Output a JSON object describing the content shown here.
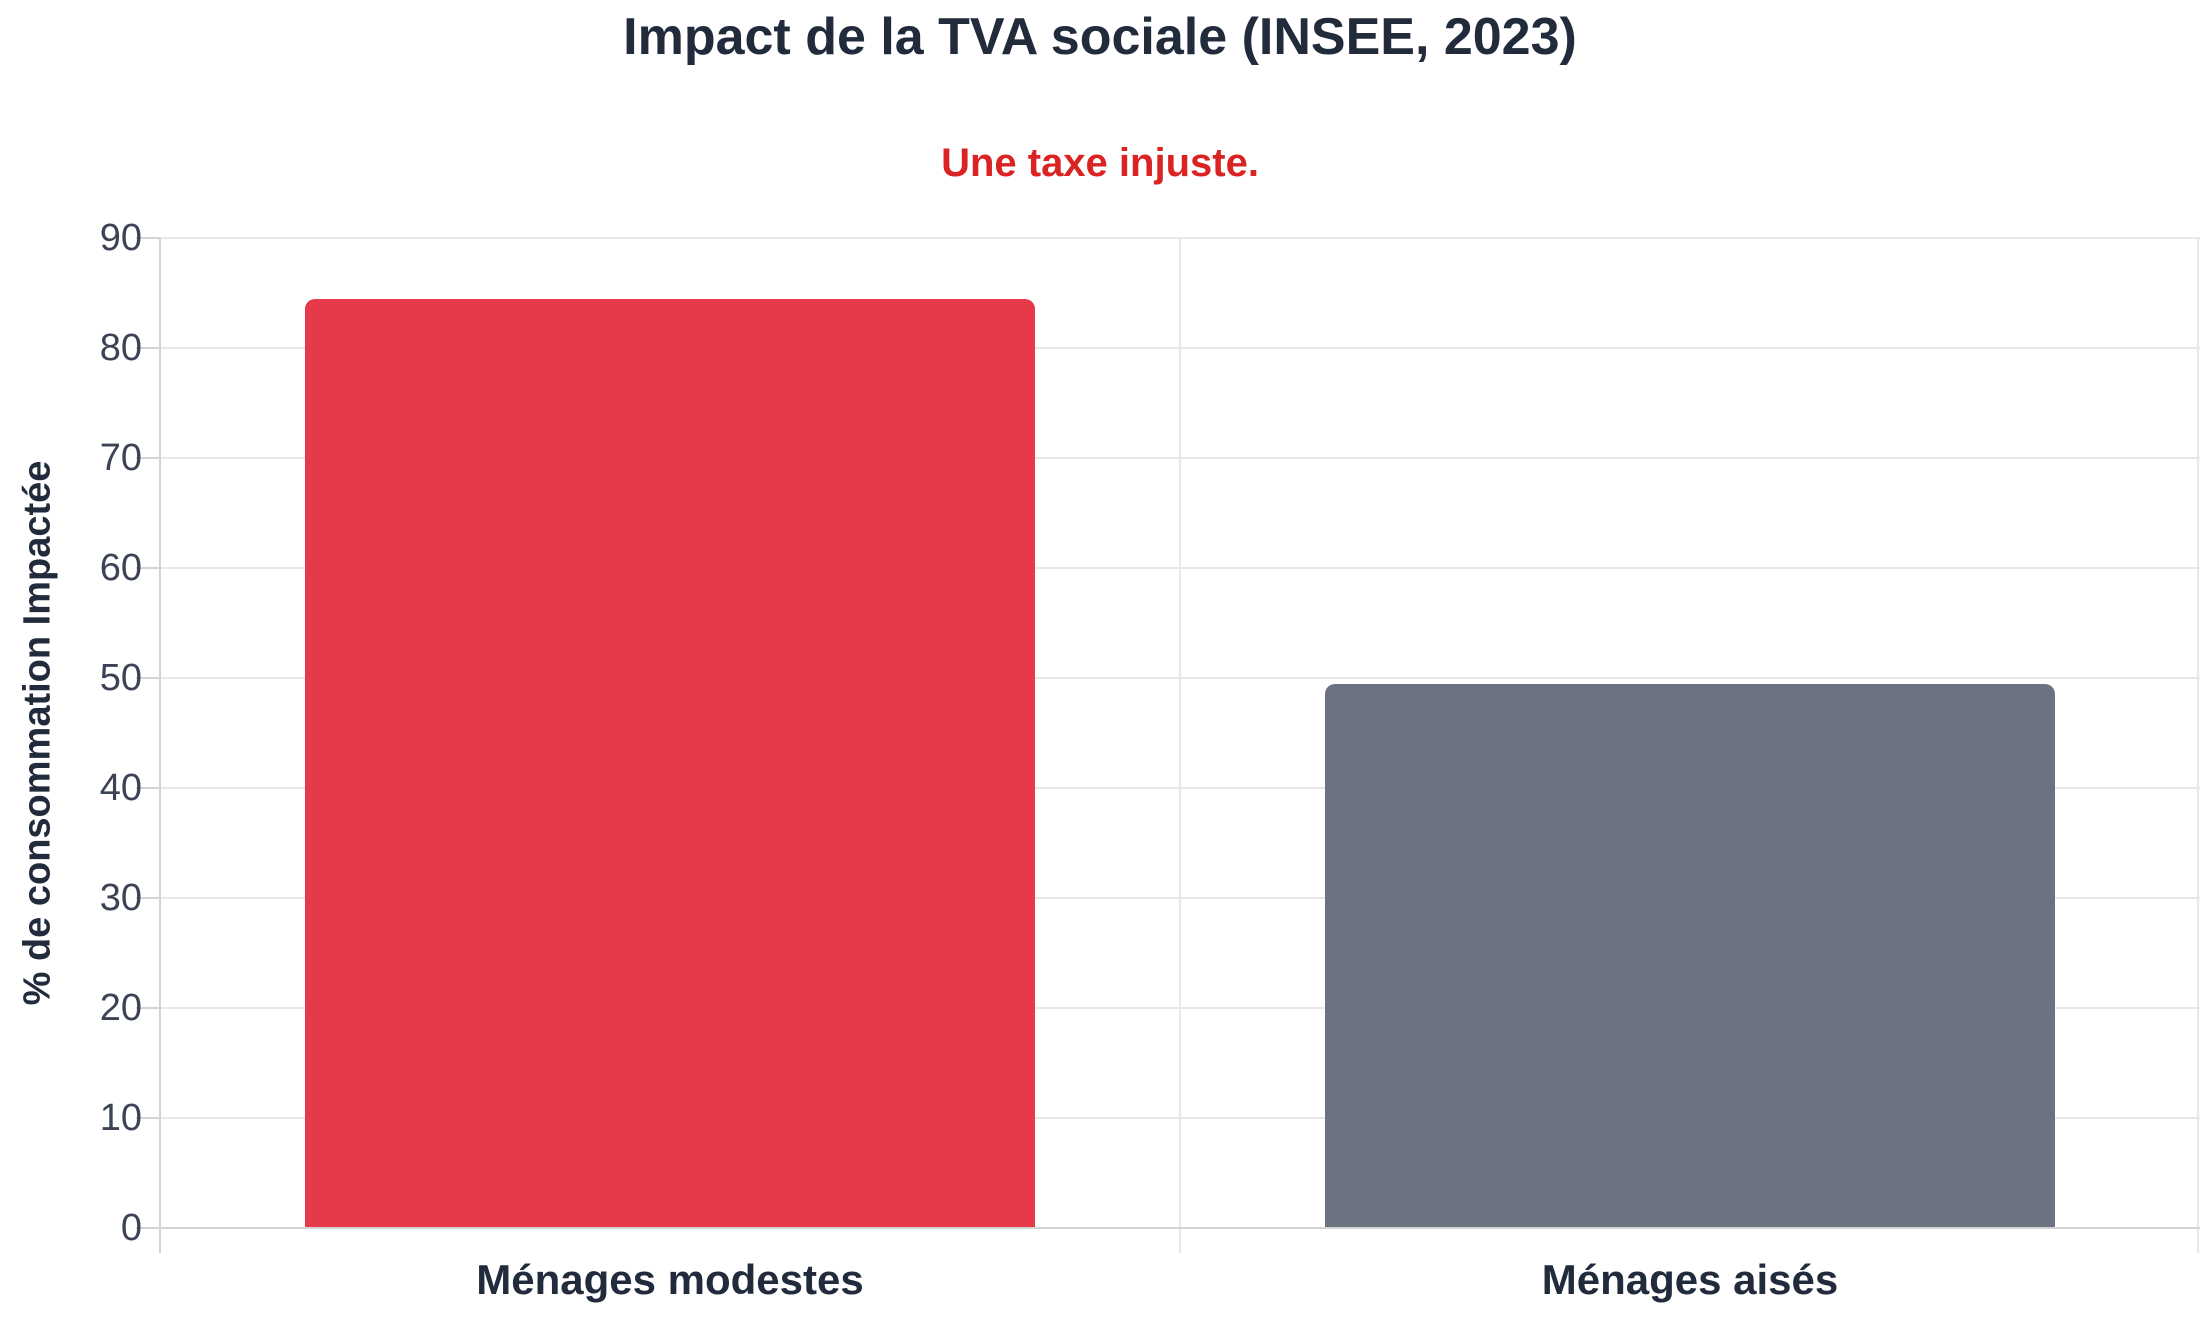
{
  "chart_data": {
    "type": "bar",
    "title": "Impact de la TVA sociale (INSEE, 2023)",
    "subtitle": "Une taxe injuste.",
    "ylabel": "% de consommation Impactée",
    "xlabel": "",
    "categories": [
      "Ménages modestes",
      "Ménages aisés"
    ],
    "values": [
      84.5,
      49.5
    ],
    "bar_colors": [
      "#e63a4b",
      "#6b7280"
    ],
    "ylim": [
      0,
      90
    ],
    "yticks": [
      0,
      10,
      20,
      30,
      40,
      50,
      60,
      70,
      80,
      90
    ],
    "grid": "horizontal gridlines every 10, vertical gridlines at category boundaries",
    "legend": "none",
    "title_color": "#212b3c",
    "subtitle_color": "#da2323",
    "tick_color": "#3c4354",
    "grid_color": "#e8e8e8",
    "axis_line_color": "#d4d4d4",
    "background_color": "#ffffff"
  }
}
